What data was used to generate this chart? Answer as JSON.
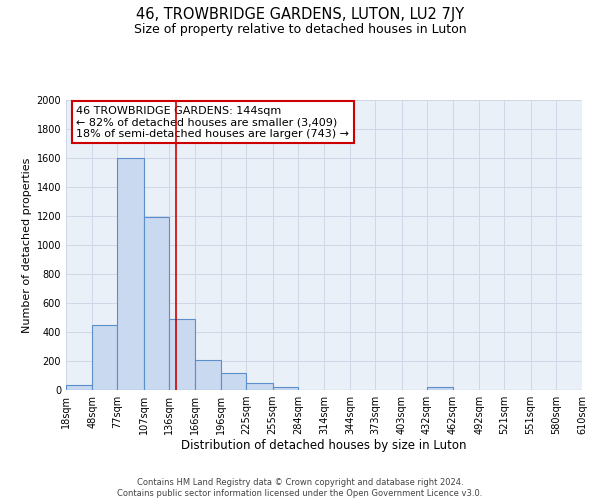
{
  "title": "46, TROWBRIDGE GARDENS, LUTON, LU2 7JY",
  "subtitle": "Size of property relative to detached houses in Luton",
  "xlabel": "Distribution of detached houses by size in Luton",
  "ylabel": "Number of detached properties",
  "footer_line1": "Contains HM Land Registry data © Crown copyright and database right 2024.",
  "footer_line2": "Contains public sector information licensed under the Open Government Licence v3.0.",
  "bar_edges": [
    18,
    48,
    77,
    107,
    136,
    166,
    196,
    225,
    255,
    284,
    314,
    344,
    373,
    403,
    432,
    462,
    492,
    521,
    551,
    580,
    610
  ],
  "bar_heights": [
    35,
    450,
    1600,
    1190,
    490,
    210,
    120,
    45,
    20,
    0,
    0,
    0,
    0,
    0,
    20,
    0,
    0,
    0,
    0,
    0
  ],
  "bar_color": "#c9d9f0",
  "bar_edge_color": "#5b8fc9",
  "bar_linewidth": 0.8,
  "vline_x": 144,
  "vline_color": "#cc0000",
  "vline_linewidth": 1.2,
  "ylim": [
    0,
    2000
  ],
  "yticks": [
    0,
    200,
    400,
    600,
    800,
    1000,
    1200,
    1400,
    1600,
    1800,
    2000
  ],
  "annotation_line1": "46 TROWBRIDGE GARDENS: 144sqm",
  "annotation_line2": "← 82% of detached houses are smaller (3,409)",
  "annotation_line3": "18% of semi-detached houses are larger (743) →",
  "annotation_box_color": "#cc0000",
  "grid_color": "#d0d8e8",
  "bg_color": "#eaf0f8",
  "title_fontsize": 10.5,
  "subtitle_fontsize": 9,
  "xlabel_fontsize": 8.5,
  "ylabel_fontsize": 8,
  "tick_fontsize": 7,
  "annotation_fontsize": 8,
  "footer_fontsize": 6
}
